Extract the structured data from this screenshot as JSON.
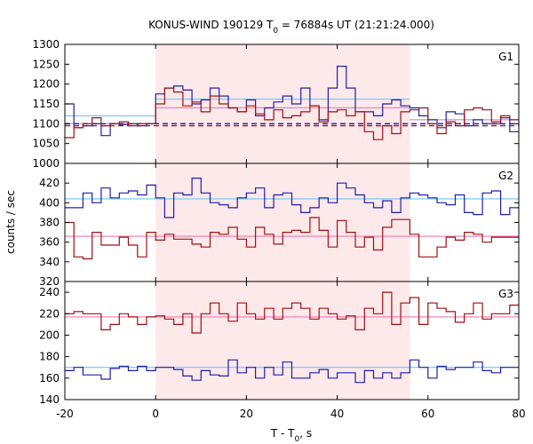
{
  "chart_data": {
    "type": "line",
    "title_prefix": "KONUS-WIND 190129 T",
    "title_sub": "0",
    "title_suffix": " = 76884s UT (21:21:24.000)",
    "xlabel_prefix": "T - T",
    "xlabel_sub": "0",
    "xlabel_suffix": ", s",
    "ylabel": "counts / sec",
    "xlim": [
      -20,
      80
    ],
    "x_ticks": [
      -20,
      0,
      20,
      40,
      60,
      80
    ],
    "shaded_interval": [
      0,
      56
    ],
    "shade_color": "#fde8ea",
    "colors": {
      "blue": "#1f1fa8",
      "red": "#a01010",
      "light_blue": "#6ec6f0",
      "pink": "#f07ab0"
    },
    "bin_edges": [
      -20,
      -18,
      -16,
      -14,
      -12,
      -10,
      -8,
      -6,
      -4,
      -2,
      0,
      2,
      4,
      6,
      8,
      10,
      12,
      14,
      16,
      18,
      20,
      22,
      24,
      26,
      28,
      30,
      32,
      34,
      36,
      38,
      40,
      42,
      44,
      46,
      48,
      50,
      52,
      54,
      56,
      58,
      60,
      62,
      64,
      66,
      68,
      70,
      72,
      74,
      76,
      78,
      80
    ],
    "panels": [
      {
        "label": "G1",
        "ylim": [
          1000,
          1300
        ],
        "y_ticks": [
          1000,
          1050,
          1100,
          1150,
          1200,
          1250,
          1300
        ],
        "series": [
          {
            "color": "blue",
            "values": [
              1150,
              1090,
              1095,
              1100,
              1070,
              1100,
              1098,
              1100,
              1095,
              1100,
              1175,
              1190,
              1195,
              1185,
              1150,
              1160,
              1190,
              1170,
              1140,
              1130,
              1160,
              1120,
              1140,
              1155,
              1170,
              1150,
              1190,
              1145,
              1110,
              1190,
              1245,
              1190,
              1130,
              1130,
              1120,
              1150,
              1160,
              1145,
              1140,
              1120,
              1110,
              1090,
              1130,
              1125,
              1095,
              1110,
              1100,
              1100,
              1115,
              1080
            ]
          },
          {
            "color": "red",
            "values": [
              1065,
              1090,
              1100,
              1115,
              1095,
              1100,
              1105,
              1095,
              1100,
              1100,
              1150,
              1190,
              1180,
              1145,
              1155,
              1130,
              1170,
              1150,
              1140,
              1130,
              1145,
              1125,
              1110,
              1135,
              1115,
              1120,
              1130,
              1145,
              1105,
              1130,
              1135,
              1120,
              1130,
              1080,
              1060,
              1095,
              1075,
              1130,
              1135,
              1140,
              1100,
              1075,
              1105,
              1095,
              1135,
              1140,
              1135,
              1105,
              1120,
              1110
            ]
          }
        ],
        "levels": [
          {
            "color": "light_blue",
            "style": "solid",
            "from": -20,
            "to": 0,
            "value": 1120
          },
          {
            "color": "light_blue",
            "style": "solid",
            "from": 0,
            "to": 56,
            "value": 1162
          },
          {
            "color": "light_blue",
            "style": "solid",
            "from": 56,
            "to": 80,
            "value": 1110
          },
          {
            "color": "pink",
            "style": "solid",
            "from": -20,
            "to": 0,
            "value": 1100
          },
          {
            "color": "pink",
            "style": "solid",
            "from": 0,
            "to": 56,
            "value": 1140
          },
          {
            "color": "pink",
            "style": "solid",
            "from": 56,
            "to": 80,
            "value": 1110
          },
          {
            "color": "blue",
            "style": "dashed",
            "from": -20,
            "to": 80,
            "value": 1100
          },
          {
            "color": "red",
            "style": "dashed",
            "from": -20,
            "to": 80,
            "value": 1095
          }
        ]
      },
      {
        "label": "G2",
        "ylim": [
          320,
          440
        ],
        "y_ticks": [
          320,
          340,
          360,
          380,
          400,
          420
        ],
        "series": [
          {
            "color": "blue",
            "values": [
              395,
              395,
              410,
              400,
              415,
              405,
              410,
              412,
              408,
              418,
              405,
              385,
              410,
              408,
              425,
              410,
              400,
              398,
              395,
              405,
              410,
              415,
              395,
              408,
              410,
              398,
              390,
              395,
              405,
              400,
              420,
              415,
              408,
              400,
              395,
              402,
              390,
              405,
              410,
              408,
              405,
              400,
              398,
              408,
              390,
              388,
              410,
              412,
              388,
              395
            ]
          },
          {
            "color": "red",
            "values": [
              380,
              345,
              343,
              370,
              357,
              357,
              365,
              357,
              345,
              370,
              362,
              368,
              363,
              363,
              358,
              355,
              370,
              368,
              375,
              363,
              355,
              375,
              368,
              358,
              370,
              372,
              370,
              385,
              372,
              355,
              382,
              370,
              355,
              365,
              352,
              375,
              383,
              383,
              368,
              345,
              345,
              355,
              365,
              362,
              370,
              368,
              360,
              365,
              365,
              365
            ]
          }
        ],
        "levels": [
          {
            "color": "light_blue",
            "style": "solid",
            "from": -20,
            "to": 80,
            "value": 404
          },
          {
            "color": "pink",
            "style": "solid",
            "from": -20,
            "to": 80,
            "value": 366
          }
        ]
      },
      {
        "label": "G3",
        "ylim": [
          140,
          250
        ],
        "y_ticks": [
          140,
          160,
          180,
          200,
          220,
          240
        ],
        "series": [
          {
            "color": "blue",
            "values": [
              167,
              170,
              163,
              163,
              159,
              169,
              171,
              167,
              171,
              167,
              170,
              170,
              168,
              162,
              158,
              167,
              163,
              162,
              177,
              165,
              170,
              160,
              170,
              163,
              175,
              160,
              160,
              165,
              168,
              160,
              165,
              165,
              156,
              167,
              160,
              165,
              160,
              165,
              177,
              170,
              160,
              171,
              168,
              170,
              170,
              175,
              167,
              165,
              170,
              170
            ]
          },
          {
            "color": "red",
            "values": [
              220,
              222,
              220,
              220,
              205,
              210,
              220,
              217,
              210,
              217,
              218,
              215,
              210,
              220,
              202,
              220,
              230,
              220,
              213,
              230,
              220,
              215,
              225,
              215,
              225,
              230,
              225,
              215,
              225,
              220,
              215,
              218,
              205,
              225,
              220,
              240,
              210,
              230,
              235,
              210,
              230,
              225,
              222,
              212,
              220,
              230,
              215,
              220,
              220,
              228
            ]
          }
        ],
        "levels": [
          {
            "color": "light_blue",
            "style": "solid",
            "from": -20,
            "to": 80,
            "value": 170
          },
          {
            "color": "pink",
            "style": "solid",
            "from": -20,
            "to": 80,
            "value": 217
          }
        ]
      }
    ]
  }
}
